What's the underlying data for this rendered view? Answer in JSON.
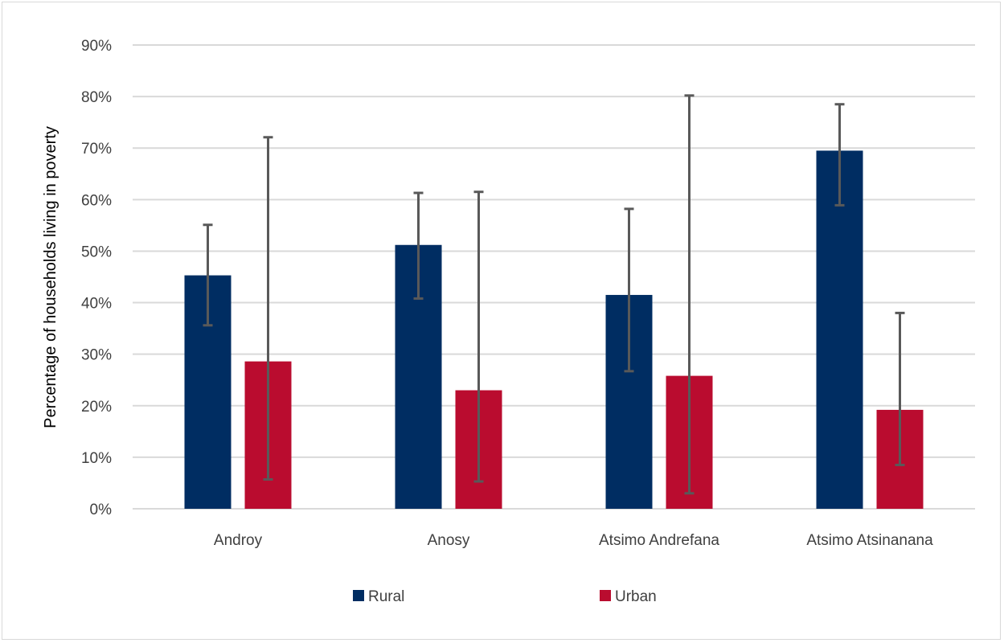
{
  "chart_data": {
    "type": "bar",
    "title": "",
    "xlabel": "",
    "ylabel": "Percentage of households living in poverty",
    "ylim": [
      0,
      90
    ],
    "yticks": [
      0,
      10,
      20,
      30,
      40,
      50,
      60,
      70,
      80,
      90
    ],
    "ytick_labels": [
      "0%",
      "10%",
      "20%",
      "30%",
      "40%",
      "50%",
      "60%",
      "70%",
      "80%",
      "90%"
    ],
    "grid": true,
    "legend_position": "bottom",
    "categories": [
      "Androy",
      "Anosy",
      "Atsimo Andrefana",
      "Atsimo Atsinanana"
    ],
    "series": [
      {
        "name": "Rural",
        "color": "#002D62",
        "values": [
          45.3,
          51.2,
          41.5,
          69.5
        ],
        "error_low": [
          35.6,
          40.8,
          26.7,
          58.9
        ],
        "error_high": [
          55.1,
          61.3,
          58.2,
          78.5
        ]
      },
      {
        "name": "Urban",
        "color": "#BA0C2F",
        "values": [
          28.6,
          23.0,
          25.8,
          19.2
        ],
        "error_low": [
          5.7,
          5.3,
          3.0,
          8.5
        ],
        "error_high": [
          72.1,
          61.5,
          80.2,
          38.0
        ]
      }
    ],
    "error_bar_color": "#595959",
    "grid_color": "#D9D9D9"
  }
}
